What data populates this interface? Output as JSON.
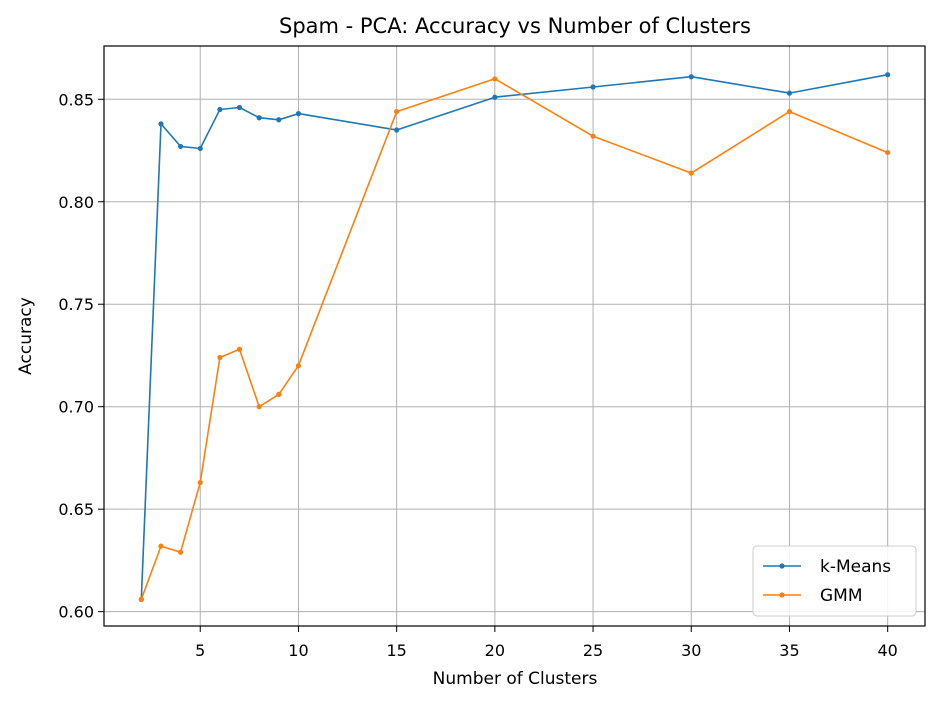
{
  "chart_data": {
    "type": "line",
    "title": "Spam - PCA: Accuracy vs Number of Clusters",
    "xlabel": "Number of Clusters",
    "ylabel": "Accuracy",
    "xlim": [
      0.1,
      41.9
    ],
    "ylim": [
      0.593,
      0.876
    ],
    "xticks": [
      5,
      10,
      15,
      20,
      25,
      30,
      35,
      40
    ],
    "yticks": [
      0.6,
      0.65,
      0.7,
      0.75,
      0.8,
      0.85
    ],
    "ytick_labels": [
      "0.60",
      "0.65",
      "0.70",
      "0.75",
      "0.80",
      "0.85"
    ],
    "grid": true,
    "legend_position": "lower-right",
    "x": [
      2,
      3,
      4,
      5,
      6,
      7,
      8,
      9,
      10,
      15,
      20,
      25,
      30,
      35,
      40
    ],
    "series": [
      {
        "name": "k-Means",
        "color": "#1f77b4",
        "values": [
          0.606,
          0.838,
          0.827,
          0.826,
          0.845,
          0.846,
          0.841,
          0.84,
          0.843,
          0.835,
          0.851,
          0.856,
          0.861,
          0.853,
          0.862
        ]
      },
      {
        "name": "GMM",
        "color": "#ff7f0e",
        "values": [
          0.606,
          0.632,
          0.629,
          0.663,
          0.724,
          0.728,
          0.7,
          0.706,
          0.72,
          0.844,
          0.86,
          0.832,
          0.814,
          0.844,
          0.824
        ]
      }
    ]
  }
}
